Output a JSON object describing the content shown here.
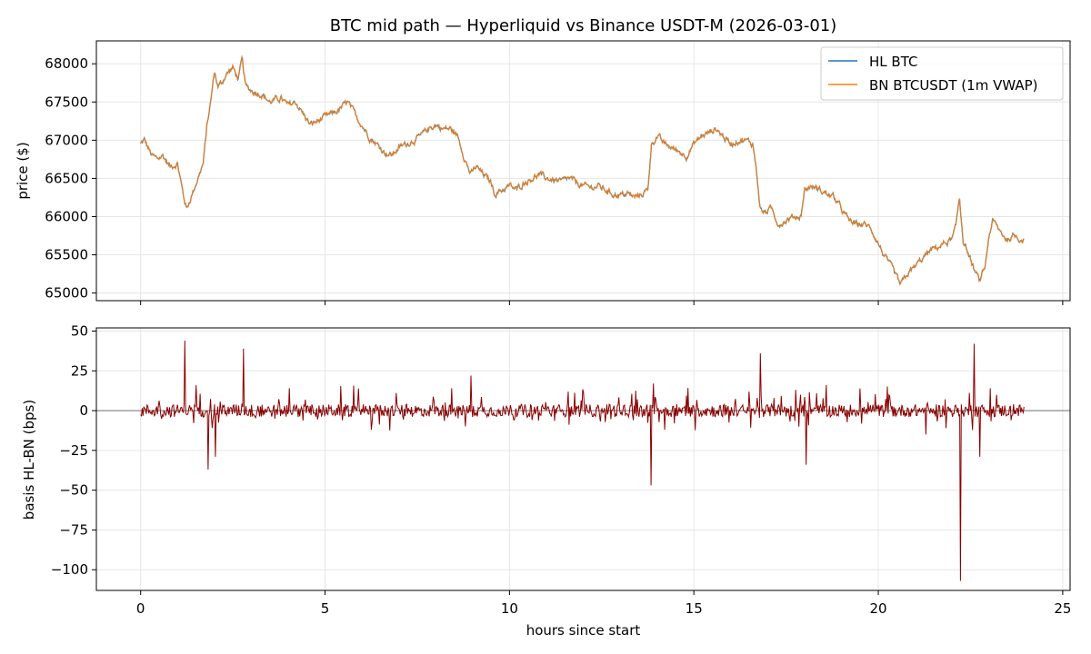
{
  "chart_data": [
    {
      "type": "line",
      "title": "BTC mid path — Hyperliquid vs Binance USDT-M (2026-03-01)",
      "ylabel": "price ($)",
      "xlabel": "",
      "xlim": [
        -1.2,
        25.2
      ],
      "ylim": [
        64900,
        68300
      ],
      "xticks": [
        0,
        5,
        10,
        15,
        20,
        25
      ],
      "yticks": [
        65000,
        65500,
        66000,
        66500,
        67000,
        67500,
        68000
      ],
      "grid": true,
      "legend_position": "top-right",
      "series": [
        {
          "name": "HL BTC",
          "color": "#1f77b4"
        },
        {
          "name": "BN BTCUSDT (1m VWAP)",
          "color": "#ff7f0e"
        }
      ],
      "anchors_x": [
        0,
        0.1,
        0.3,
        0.45,
        0.6,
        0.8,
        1.0,
        1.15,
        1.25,
        1.4,
        1.55,
        1.7,
        1.8,
        1.9,
        2.0,
        2.1,
        2.2,
        2.3,
        2.5,
        2.65,
        2.75,
        2.85,
        3.0,
        3.3,
        3.5,
        3.8,
        4.0,
        4.2,
        4.4,
        4.6,
        4.8,
        5.0,
        5.2,
        5.4,
        5.6,
        5.8,
        6.0,
        6.2,
        6.4,
        6.6,
        6.8,
        7.0,
        7.2,
        7.4,
        7.6,
        7.8,
        8.0,
        8.2,
        8.4,
        8.6,
        8.8,
        8.95,
        9.1,
        9.3,
        9.5,
        9.6,
        9.8,
        10.0,
        10.2,
        10.4,
        10.6,
        10.8,
        11.0,
        11.2,
        11.4,
        11.6,
        11.8,
        12.0,
        12.2,
        12.4,
        12.6,
        12.8,
        13.0,
        13.2,
        13.4,
        13.6,
        13.75,
        13.85,
        14.0,
        14.2,
        14.4,
        14.6,
        14.8,
        15.0,
        15.2,
        15.4,
        15.6,
        15.8,
        16.0,
        16.2,
        16.4,
        16.6,
        16.7,
        16.8,
        16.9,
        17.1,
        17.3,
        17.5,
        17.7,
        17.9,
        18.0,
        18.2,
        18.4,
        18.6,
        18.8,
        19.0,
        19.2,
        19.4,
        19.6,
        19.8,
        20.0,
        20.2,
        20.4,
        20.6,
        20.8,
        21.0,
        21.2,
        21.4,
        21.6,
        21.8,
        22.0,
        22.1,
        22.2,
        22.3,
        22.45,
        22.6,
        22.75,
        22.9,
        23.0,
        23.1,
        23.3,
        23.5,
        23.7,
        23.9
      ],
      "anchors_y": [
        66950,
        67000,
        66800,
        66750,
        66800,
        66650,
        66700,
        66300,
        66100,
        66300,
        66500,
        66700,
        67200,
        67500,
        67900,
        67700,
        67750,
        67850,
        67950,
        67800,
        68050,
        67700,
        67650,
        67600,
        67500,
        67550,
        67450,
        67500,
        67350,
        67200,
        67250,
        67300,
        67350,
        67400,
        67500,
        67350,
        67200,
        67050,
        66950,
        66850,
        66800,
        66900,
        66950,
        67000,
        67050,
        67150,
        67200,
        67150,
        67150,
        67050,
        66750,
        66550,
        66650,
        66550,
        66450,
        66300,
        66350,
        66400,
        66350,
        66450,
        66500,
        66550,
        66500,
        66480,
        66450,
        66500,
        66450,
        66400,
        66380,
        66400,
        66350,
        66300,
        66280,
        66300,
        66250,
        66300,
        66350,
        66950,
        67050,
        66950,
        66900,
        66850,
        66800,
        66950,
        67050,
        67100,
        67150,
        67050,
        66950,
        67000,
        67000,
        66950,
        66600,
        66100,
        66050,
        66100,
        65900,
        65950,
        66000,
        66000,
        66350,
        66400,
        66350,
        66300,
        66250,
        66100,
        65950,
        65900,
        65900,
        65850,
        65650,
        65450,
        65300,
        65100,
        65250,
        65350,
        65450,
        65550,
        65600,
        65650,
        65700,
        65850,
        66250,
        65700,
        65500,
        65300,
        65150,
        65350,
        65750,
        65950,
        65800,
        65700,
        65750,
        65700
      ]
    },
    {
      "type": "line",
      "title": "",
      "ylabel": "basis HL-BN (bps)",
      "xlabel": "hours since start",
      "xlim": [
        -1.2,
        25.2
      ],
      "ylim": [
        -113,
        52
      ],
      "xticks": [
        0,
        5,
        10,
        15,
        20,
        25
      ],
      "yticks": [
        50,
        25,
        0,
        -25,
        -50,
        -75,
        -100
      ],
      "ytick_labels": [
        "50",
        "25",
        "0",
        "−25",
        "−50",
        "−75",
        "−100"
      ],
      "grid": true,
      "zero_line": true,
      "series": [
        {
          "color": "#8b0000"
        }
      ],
      "noise_amplitude_bps": 4,
      "spikes": [
        {
          "x": 1.2,
          "y": 44
        },
        {
          "x": 1.83,
          "y": -37
        },
        {
          "x": 2.03,
          "y": -29
        },
        {
          "x": 2.8,
          "y": 39
        },
        {
          "x": 8.95,
          "y": 22
        },
        {
          "x": 13.83,
          "y": -47
        },
        {
          "x": 16.8,
          "y": 36
        },
        {
          "x": 18.05,
          "y": -34
        },
        {
          "x": 22.22,
          "y": -107
        },
        {
          "x": 22.6,
          "y": 42
        },
        {
          "x": 22.75,
          "y": -29
        },
        {
          "x": 13.9,
          "y": 17
        },
        {
          "x": 14.2,
          "y": -12
        },
        {
          "x": 1.5,
          "y": 16
        },
        {
          "x": 5.9,
          "y": 14
        },
        {
          "x": 11.6,
          "y": 12
        },
        {
          "x": 19.5,
          "y": 14
        },
        {
          "x": 21.3,
          "y": -15
        },
        {
          "x": 23.2,
          "y": 10
        },
        {
          "x": 16.5,
          "y": 12
        }
      ]
    }
  ]
}
